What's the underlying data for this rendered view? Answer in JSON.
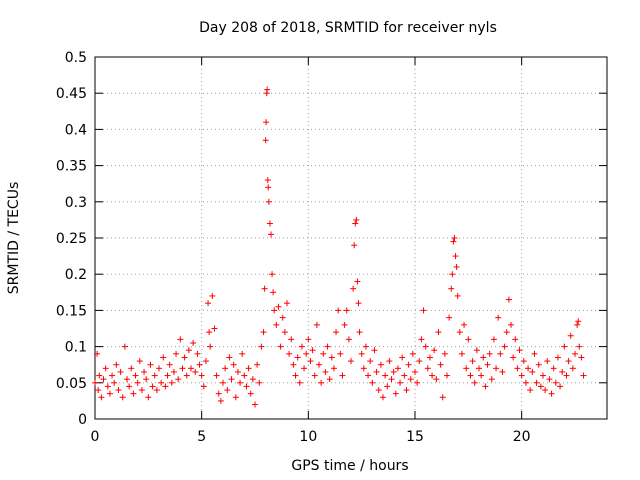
{
  "chart_data": {
    "type": "scatter",
    "title": "Day 208 of 2018, SRMTID for receiver nyls",
    "xlabel": "GPS time / hours",
    "ylabel": "SRMTID / TECUs",
    "xlim": [
      0,
      24
    ],
    "ylim": [
      0,
      0.5
    ],
    "x_ticks": [
      0,
      5,
      10,
      15,
      20
    ],
    "y_ticks": [
      0,
      0.05,
      0.1,
      0.15,
      0.2,
      0.25,
      0.3,
      0.35,
      0.4,
      0.45,
      0.5
    ],
    "x_tick_labels": [
      "0",
      "5",
      "10",
      "15",
      "20"
    ],
    "y_tick_labels": [
      "0",
      "0.05",
      "0.1",
      "0.15",
      "0.2",
      "0.25",
      "0.3",
      "0.35",
      "0.4",
      "0.45",
      "0.5"
    ],
    "grid": true,
    "marker": "+",
    "color": "#ff0000",
    "series": [
      {
        "name": "SRMTID",
        "points": [
          [
            0.0,
            0.05
          ],
          [
            0.1,
            0.09
          ],
          [
            0.15,
            0.04
          ],
          [
            0.2,
            0.06
          ],
          [
            0.3,
            0.03
          ],
          [
            0.4,
            0.055
          ],
          [
            0.5,
            0.07
          ],
          [
            0.6,
            0.045
          ],
          [
            0.7,
            0.035
          ],
          [
            0.8,
            0.06
          ],
          [
            0.9,
            0.05
          ],
          [
            1.0,
            0.075
          ],
          [
            1.1,
            0.04
          ],
          [
            1.2,
            0.065
          ],
          [
            1.3,
            0.03
          ],
          [
            1.4,
            0.1
          ],
          [
            1.5,
            0.055
          ],
          [
            1.6,
            0.045
          ],
          [
            1.7,
            0.07
          ],
          [
            1.8,
            0.035
          ],
          [
            1.9,
            0.06
          ],
          [
            2.0,
            0.05
          ],
          [
            2.1,
            0.08
          ],
          [
            2.2,
            0.04
          ],
          [
            2.3,
            0.065
          ],
          [
            2.4,
            0.055
          ],
          [
            2.5,
            0.03
          ],
          [
            2.6,
            0.075
          ],
          [
            2.7,
            0.045
          ],
          [
            2.8,
            0.06
          ],
          [
            2.9,
            0.04
          ],
          [
            3.0,
            0.07
          ],
          [
            3.1,
            0.05
          ],
          [
            3.2,
            0.085
          ],
          [
            3.3,
            0.045
          ],
          [
            3.4,
            0.06
          ],
          [
            3.5,
            0.075
          ],
          [
            3.6,
            0.05
          ],
          [
            3.7,
            0.065
          ],
          [
            3.8,
            0.09
          ],
          [
            3.9,
            0.055
          ],
          [
            4.0,
            0.11
          ],
          [
            4.1,
            0.07
          ],
          [
            4.2,
            0.085
          ],
          [
            4.3,
            0.06
          ],
          [
            4.4,
            0.095
          ],
          [
            4.5,
            0.07
          ],
          [
            4.6,
            0.105
          ],
          [
            4.7,
            0.065
          ],
          [
            4.8,
            0.09
          ],
          [
            4.9,
            0.075
          ],
          [
            5.0,
            0.06
          ],
          [
            5.1,
            0.045
          ],
          [
            5.2,
            0.08
          ],
          [
            5.3,
            0.16
          ],
          [
            5.35,
            0.12
          ],
          [
            5.4,
            0.1
          ],
          [
            5.5,
            0.17
          ],
          [
            5.6,
            0.125
          ],
          [
            5.7,
            0.06
          ],
          [
            5.8,
            0.035
          ],
          [
            5.9,
            0.025
          ],
          [
            6.0,
            0.05
          ],
          [
            6.1,
            0.07
          ],
          [
            6.2,
            0.04
          ],
          [
            6.3,
            0.085
          ],
          [
            6.4,
            0.055
          ],
          [
            6.5,
            0.075
          ],
          [
            6.6,
            0.03
          ],
          [
            6.7,
            0.065
          ],
          [
            6.8,
            0.05
          ],
          [
            6.9,
            0.09
          ],
          [
            7.0,
            0.06
          ],
          [
            7.1,
            0.045
          ],
          [
            7.2,
            0.07
          ],
          [
            7.3,
            0.035
          ],
          [
            7.4,
            0.055
          ],
          [
            7.5,
            0.02
          ],
          [
            7.6,
            0.075
          ],
          [
            7.7,
            0.05
          ],
          [
            7.8,
            0.1
          ],
          [
            7.9,
            0.12
          ],
          [
            7.95,
            0.18
          ],
          [
            8.0,
            0.385
          ],
          [
            8.02,
            0.41
          ],
          [
            8.05,
            0.45
          ],
          [
            8.07,
            0.455
          ],
          [
            8.1,
            0.33
          ],
          [
            8.12,
            0.32
          ],
          [
            8.15,
            0.3
          ],
          [
            8.2,
            0.27
          ],
          [
            8.25,
            0.255
          ],
          [
            8.3,
            0.2
          ],
          [
            8.35,
            0.175
          ],
          [
            8.4,
            0.15
          ],
          [
            8.5,
            0.13
          ],
          [
            8.6,
            0.155
          ],
          [
            8.7,
            0.1
          ],
          [
            8.8,
            0.14
          ],
          [
            8.9,
            0.12
          ],
          [
            9.0,
            0.16
          ],
          [
            9.1,
            0.09
          ],
          [
            9.2,
            0.11
          ],
          [
            9.3,
            0.075
          ],
          [
            9.4,
            0.06
          ],
          [
            9.5,
            0.085
          ],
          [
            9.6,
            0.05
          ],
          [
            9.7,
            0.1
          ],
          [
            9.8,
            0.07
          ],
          [
            9.9,
            0.09
          ],
          [
            10.0,
            0.11
          ],
          [
            10.1,
            0.08
          ],
          [
            10.2,
            0.095
          ],
          [
            10.3,
            0.06
          ],
          [
            10.4,
            0.13
          ],
          [
            10.5,
            0.075
          ],
          [
            10.6,
            0.05
          ],
          [
            10.7,
            0.09
          ],
          [
            10.8,
            0.065
          ],
          [
            10.9,
            0.1
          ],
          [
            11.0,
            0.055
          ],
          [
            11.1,
            0.085
          ],
          [
            11.2,
            0.07
          ],
          [
            11.3,
            0.12
          ],
          [
            11.4,
            0.15
          ],
          [
            11.5,
            0.09
          ],
          [
            11.6,
            0.06
          ],
          [
            11.7,
            0.13
          ],
          [
            11.8,
            0.15
          ],
          [
            11.9,
            0.11
          ],
          [
            12.0,
            0.08
          ],
          [
            12.1,
            0.18
          ],
          [
            12.15,
            0.24
          ],
          [
            12.2,
            0.27
          ],
          [
            12.25,
            0.275
          ],
          [
            12.3,
            0.19
          ],
          [
            12.35,
            0.16
          ],
          [
            12.4,
            0.12
          ],
          [
            12.5,
            0.09
          ],
          [
            12.6,
            0.07
          ],
          [
            12.7,
            0.1
          ],
          [
            12.8,
            0.06
          ],
          [
            12.9,
            0.08
          ],
          [
            13.0,
            0.05
          ],
          [
            13.1,
            0.095
          ],
          [
            13.2,
            0.065
          ],
          [
            13.3,
            0.04
          ],
          [
            13.4,
            0.075
          ],
          [
            13.5,
            0.03
          ],
          [
            13.6,
            0.06
          ],
          [
            13.7,
            0.045
          ],
          [
            13.8,
            0.08
          ],
          [
            13.9,
            0.055
          ],
          [
            14.0,
            0.065
          ],
          [
            14.1,
            0.035
          ],
          [
            14.2,
            0.07
          ],
          [
            14.3,
            0.05
          ],
          [
            14.4,
            0.085
          ],
          [
            14.5,
            0.06
          ],
          [
            14.6,
            0.04
          ],
          [
            14.7,
            0.075
          ],
          [
            14.8,
            0.055
          ],
          [
            14.9,
            0.09
          ],
          [
            15.0,
            0.065
          ],
          [
            15.1,
            0.05
          ],
          [
            15.2,
            0.08
          ],
          [
            15.3,
            0.11
          ],
          [
            15.4,
            0.15
          ],
          [
            15.5,
            0.1
          ],
          [
            15.6,
            0.07
          ],
          [
            15.7,
            0.085
          ],
          [
            15.8,
            0.06
          ],
          [
            15.9,
            0.095
          ],
          [
            16.0,
            0.055
          ],
          [
            16.1,
            0.12
          ],
          [
            16.2,
            0.075
          ],
          [
            16.3,
            0.03
          ],
          [
            16.4,
            0.09
          ],
          [
            16.5,
            0.06
          ],
          [
            16.6,
            0.14
          ],
          [
            16.7,
            0.18
          ],
          [
            16.75,
            0.2
          ],
          [
            16.8,
            0.245
          ],
          [
            16.85,
            0.25
          ],
          [
            16.9,
            0.225
          ],
          [
            16.95,
            0.21
          ],
          [
            17.0,
            0.17
          ],
          [
            17.1,
            0.12
          ],
          [
            17.2,
            0.09
          ],
          [
            17.3,
            0.13
          ],
          [
            17.4,
            0.07
          ],
          [
            17.5,
            0.11
          ],
          [
            17.6,
            0.06
          ],
          [
            17.7,
            0.08
          ],
          [
            17.8,
            0.05
          ],
          [
            17.9,
            0.095
          ],
          [
            18.0,
            0.07
          ],
          [
            18.1,
            0.06
          ],
          [
            18.2,
            0.085
          ],
          [
            18.3,
            0.045
          ],
          [
            18.4,
            0.075
          ],
          [
            18.5,
            0.09
          ],
          [
            18.6,
            0.055
          ],
          [
            18.7,
            0.11
          ],
          [
            18.8,
            0.07
          ],
          [
            18.9,
            0.14
          ],
          [
            19.0,
            0.09
          ],
          [
            19.1,
            0.065
          ],
          [
            19.2,
            0.1
          ],
          [
            19.3,
            0.12
          ],
          [
            19.4,
            0.165
          ],
          [
            19.5,
            0.13
          ],
          [
            19.6,
            0.085
          ],
          [
            19.7,
            0.11
          ],
          [
            19.8,
            0.07
          ],
          [
            19.9,
            0.095
          ],
          [
            20.0,
            0.06
          ],
          [
            20.1,
            0.08
          ],
          [
            20.2,
            0.05
          ],
          [
            20.3,
            0.07
          ],
          [
            20.4,
            0.04
          ],
          [
            20.5,
            0.065
          ],
          [
            20.6,
            0.09
          ],
          [
            20.7,
            0.05
          ],
          [
            20.8,
            0.075
          ],
          [
            20.9,
            0.045
          ],
          [
            21.0,
            0.06
          ],
          [
            21.1,
            0.04
          ],
          [
            21.2,
            0.08
          ],
          [
            21.3,
            0.055
          ],
          [
            21.4,
            0.035
          ],
          [
            21.5,
            0.07
          ],
          [
            21.6,
            0.05
          ],
          [
            21.7,
            0.085
          ],
          [
            21.8,
            0.045
          ],
          [
            21.9,
            0.065
          ],
          [
            22.0,
            0.1
          ],
          [
            22.1,
            0.06
          ],
          [
            22.2,
            0.08
          ],
          [
            22.3,
            0.115
          ],
          [
            22.4,
            0.07
          ],
          [
            22.5,
            0.09
          ],
          [
            22.6,
            0.13
          ],
          [
            22.65,
            0.135
          ],
          [
            22.7,
            0.1
          ],
          [
            22.8,
            0.085
          ],
          [
            22.9,
            0.06
          ]
        ]
      }
    ]
  }
}
